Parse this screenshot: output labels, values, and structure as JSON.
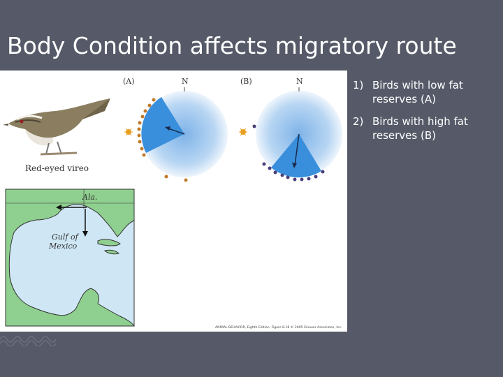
{
  "slide": {
    "title": "Body Condition affects migratory route"
  },
  "figure": {
    "panel_a_label": "(A)",
    "panel_b_label": "(B)",
    "north_label": "N",
    "bird_caption": "Red-eyed vireo",
    "map_label_alabama": "Ala.",
    "map_label_gulf_1": "Gulf of",
    "map_label_gulf_2": "Mexico",
    "credit": "ANIMAL BEHAVIOR, Eighth Edition, Figure 8.18 © 2005 Sinauer Associates, Inc.",
    "colors": {
      "circle_light": "#e6f0fb",
      "circle_mid": "#7fb3e8",
      "sector": "#3a8fdc",
      "dot_low_fat": "#c07a2a",
      "dot_high_fat": "#4a3f7a",
      "land": "#8fcf8f",
      "water": "#cfe6f5"
    }
  },
  "bullets": [
    {
      "number": "1)",
      "line1": "Birds with low fat",
      "line2": "reserves (A)"
    },
    {
      "number": "2)",
      "line1": "Birds with high fat",
      "line2": "reserves (B)"
    }
  ]
}
